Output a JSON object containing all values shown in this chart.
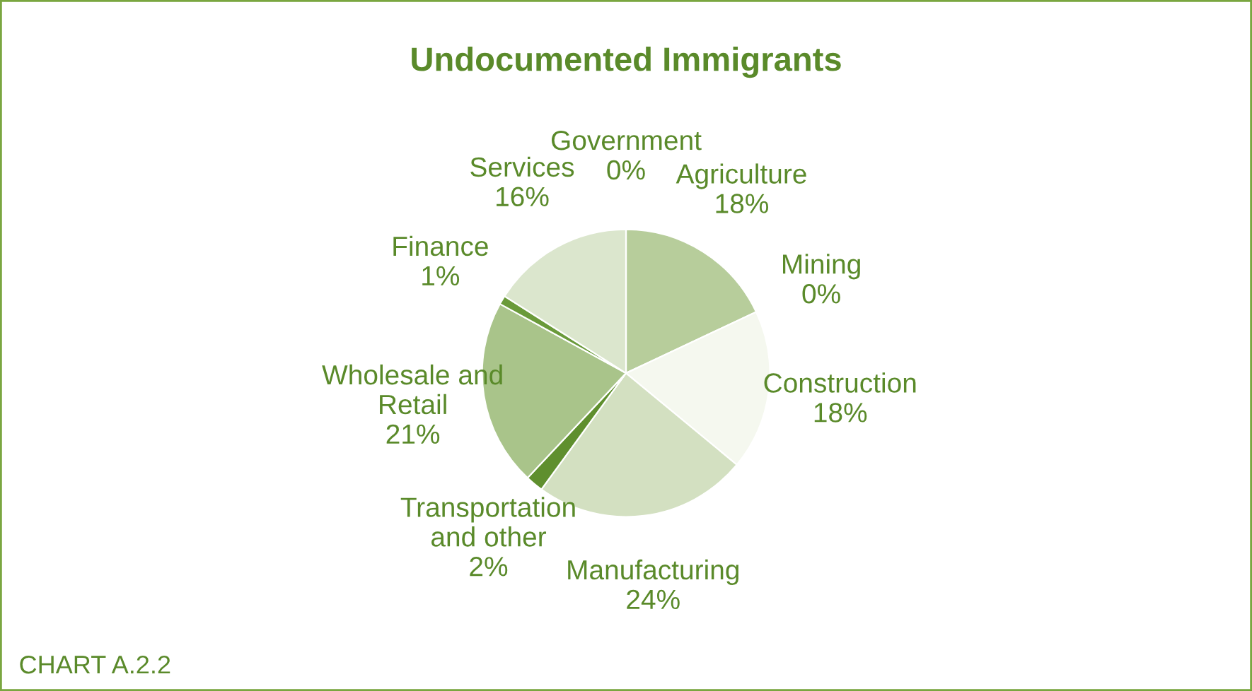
{
  "chart_data": {
    "type": "pie",
    "title": "Undocumented Immigrants",
    "categories": [
      "Government",
      "Agriculture",
      "Mining",
      "Construction",
      "Manufacturing",
      "Transportation\nand other",
      "Wholesale and\nRetail",
      "Finance",
      "Services"
    ],
    "values": [
      0,
      18,
      0,
      18,
      24,
      2,
      21,
      1,
      16
    ],
    "value_labels": [
      "0%",
      "18%",
      "0%",
      "18%",
      "24%",
      "2%",
      "21%",
      "1%",
      "16%"
    ],
    "colors": [
      "#6a9a3a",
      "#b7cd9b",
      "#edf2e4",
      "#f5f8ef",
      "#d3e0c1",
      "#5f8f2e",
      "#a9c48a",
      "#6a9a3a",
      "#dbe6cd"
    ],
    "annotations": [
      "CHART A.2.2"
    ]
  }
}
